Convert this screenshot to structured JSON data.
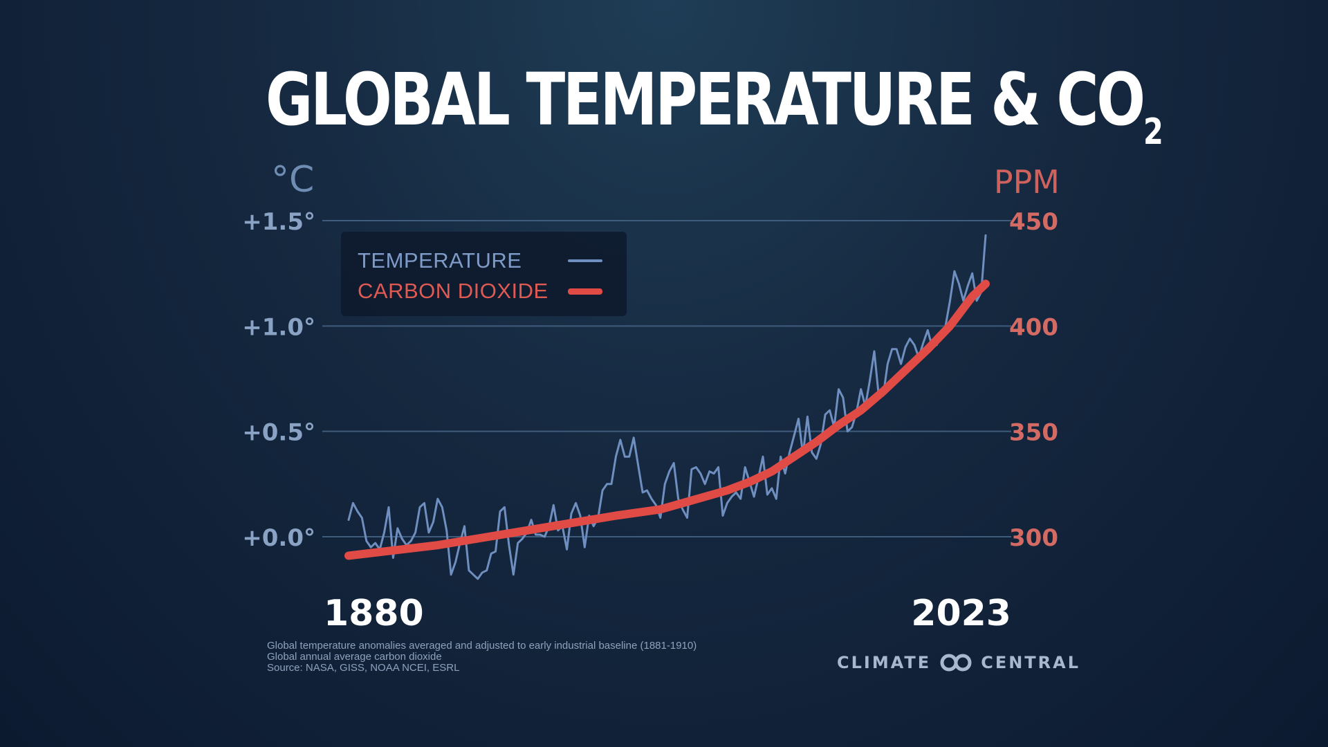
{
  "title": {
    "main": "GLOBAL TEMPERATURE & CO",
    "subscript": "2"
  },
  "colors": {
    "temperature": "#6f8fc0",
    "co2": "#e04b46",
    "grid": "#3f5c7c"
  },
  "chart_data": {
    "type": "line",
    "title": "GLOBAL TEMPERATURE & CO2",
    "y_left_unit": "°C",
    "y_right_unit": "PPM",
    "y_left_ticks": [
      "+0.0°",
      "+0.5°",
      "+1.0°",
      "+1.5°"
    ],
    "y_right_ticks": [
      "300",
      "350",
      "400",
      "450"
    ],
    "y_left_lim": [
      0,
      1.5
    ],
    "y_right_lim": [
      300,
      450
    ],
    "x_start_label": "1880",
    "x_end_label": "2023",
    "x_range": [
      1880,
      2023
    ],
    "grid": true,
    "legend": [
      {
        "label": "TEMPERATURE",
        "series": "temperature"
      },
      {
        "label": "CARBON DIOXIDE",
        "series": "co2"
      }
    ],
    "series": [
      {
        "name": "TEMPERATURE",
        "axis": "left",
        "x": [
          1880,
          1881,
          1882,
          1883,
          1884,
          1885,
          1886,
          1887,
          1888,
          1889,
          1890,
          1891,
          1892,
          1893,
          1894,
          1895,
          1896,
          1897,
          1898,
          1899,
          1900,
          1901,
          1902,
          1903,
          1904,
          1905,
          1906,
          1907,
          1908,
          1909,
          1910,
          1911,
          1912,
          1913,
          1914,
          1915,
          1916,
          1917,
          1918,
          1919,
          1920,
          1921,
          1922,
          1923,
          1924,
          1925,
          1926,
          1927,
          1928,
          1929,
          1930,
          1931,
          1932,
          1933,
          1934,
          1935,
          1936,
          1937,
          1938,
          1939,
          1940,
          1941,
          1942,
          1943,
          1944,
          1945,
          1946,
          1947,
          1948,
          1949,
          1950,
          1951,
          1952,
          1953,
          1954,
          1955,
          1956,
          1957,
          1958,
          1959,
          1960,
          1961,
          1962,
          1963,
          1964,
          1965,
          1966,
          1967,
          1968,
          1969,
          1970,
          1971,
          1972,
          1973,
          1974,
          1975,
          1976,
          1977,
          1978,
          1979,
          1980,
          1981,
          1982,
          1983,
          1984,
          1985,
          1986,
          1987,
          1988,
          1989,
          1990,
          1991,
          1992,
          1993,
          1994,
          1995,
          1996,
          1997,
          1998,
          1999,
          2000,
          2001,
          2002,
          2003,
          2004,
          2005,
          2006,
          2007,
          2008,
          2009,
          2010,
          2011,
          2012,
          2013,
          2014,
          2015,
          2016,
          2017,
          2018,
          2019,
          2020,
          2021,
          2022,
          2023
        ],
        "values": [
          0.08,
          0.16,
          0.12,
          0.09,
          -0.02,
          -0.05,
          -0.03,
          -0.06,
          0.02,
          0.14,
          -0.1,
          0.04,
          -0.01,
          -0.04,
          -0.02,
          0.02,
          0.14,
          0.16,
          0.02,
          0.07,
          0.18,
          0.14,
          0.03,
          -0.18,
          -0.12,
          -0.03,
          0.05,
          -0.16,
          -0.18,
          -0.2,
          -0.17,
          -0.16,
          -0.08,
          -0.07,
          0.12,
          0.14,
          -0.04,
          -0.18,
          -0.03,
          -0.01,
          0.02,
          0.08,
          0.01,
          0.01,
          0.0,
          0.05,
          0.15,
          0.03,
          0.05,
          -0.06,
          0.11,
          0.16,
          0.1,
          -0.05,
          0.1,
          0.05,
          0.09,
          0.22,
          0.25,
          0.25,
          0.38,
          0.46,
          0.38,
          0.38,
          0.47,
          0.34,
          0.21,
          0.22,
          0.18,
          0.15,
          0.09,
          0.25,
          0.31,
          0.35,
          0.18,
          0.13,
          0.09,
          0.32,
          0.33,
          0.3,
          0.25,
          0.31,
          0.3,
          0.33,
          0.1,
          0.16,
          0.19,
          0.21,
          0.18,
          0.33,
          0.26,
          0.19,
          0.28,
          0.38,
          0.2,
          0.23,
          0.18,
          0.38,
          0.3,
          0.4,
          0.48,
          0.56,
          0.39,
          0.57,
          0.4,
          0.37,
          0.44,
          0.58,
          0.6,
          0.52,
          0.7,
          0.66,
          0.5,
          0.52,
          0.59,
          0.7,
          0.62,
          0.74,
          0.88,
          0.67,
          0.67,
          0.82,
          0.89,
          0.89,
          0.82,
          0.9,
          0.94,
          0.91,
          0.85,
          0.92,
          0.98,
          0.9,
          0.91,
          0.95,
          1.0,
          1.12,
          1.26,
          1.2,
          1.12,
          1.19,
          1.25,
          1.12,
          1.16,
          1.43
        ]
      },
      {
        "name": "CARBON DIOXIDE",
        "axis": "right",
        "x": [
          1880,
          1890,
          1900,
          1910,
          1920,
          1930,
          1940,
          1950,
          1955,
          1960,
          1965,
          1970,
          1975,
          1980,
          1985,
          1990,
          1995,
          2000,
          2005,
          2010,
          2015,
          2020,
          2023
        ],
        "values": [
          291,
          293.5,
          296,
          299.5,
          303,
          306.5,
          310,
          313,
          316,
          319,
          322,
          326,
          331,
          338,
          345,
          353,
          360,
          369,
          379,
          389,
          400,
          414,
          420
        ]
      }
    ]
  },
  "footnote": {
    "line1": "Global temperature anomalies averaged and adjusted to early industrial baseline (1881-1910)",
    "line2": "Global annual average carbon dioxide",
    "line3": "Source: NASA, GISS, NOAA NCEI, ESRL"
  },
  "brand": {
    "left": "CLIMATE",
    "right": "CENTRAL",
    "logo_icon": "linked-rings-icon"
  }
}
